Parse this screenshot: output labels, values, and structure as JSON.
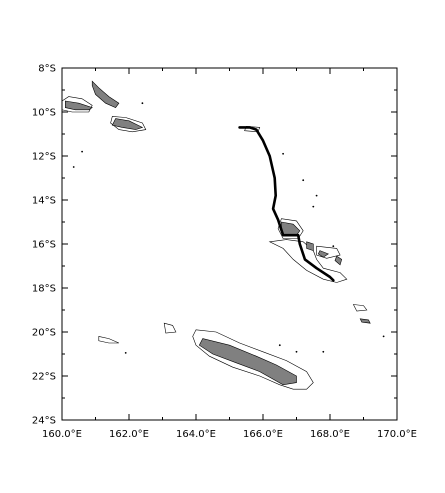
{
  "map": {
    "x_axis": {
      "min": 160.0,
      "max": 170.0,
      "labels": [
        "160.0°E",
        "162.0°E",
        "164.0°E",
        "166.0°E",
        "168.0°E",
        "170.0°E"
      ]
    },
    "y_axis": {
      "min": -24,
      "max": -8,
      "labels": [
        "8°S",
        "10°S",
        "12°S",
        "14°S",
        "16°S",
        "18°S",
        "20°S",
        "22°S",
        "24°S"
      ]
    },
    "colors": {
      "land_fill": "#808080",
      "outline": "#000000",
      "track": "#000000",
      "background": "#ffffff"
    },
    "track": {
      "description_none": "",
      "points": [
        [
          165.3,
          -10.7
        ],
        [
          165.6,
          -10.7
        ],
        [
          165.8,
          -10.8
        ],
        [
          166.0,
          -11.3
        ],
        [
          166.2,
          -12.0
        ],
        [
          166.35,
          -13.0
        ],
        [
          166.38,
          -13.8
        ],
        [
          166.3,
          -14.4
        ],
        [
          166.45,
          -14.9
        ],
        [
          166.6,
          -15.6
        ],
        [
          167.05,
          -15.6
        ],
        [
          167.1,
          -16.0
        ],
        [
          167.25,
          -16.7
        ],
        [
          167.6,
          -17.1
        ],
        [
          168.0,
          -17.5
        ],
        [
          168.1,
          -17.65
        ]
      ]
    }
  },
  "chart_data": {
    "type": "map",
    "title": "",
    "xlabel": "",
    "ylabel": "",
    "xlim": [
      160.0,
      170.0
    ],
    "ylim": [
      -24,
      -8
    ],
    "x_ticks": [
      "160.0°E",
      "162.0°E",
      "164.0°E",
      "166.0°E",
      "168.0°E",
      "170.0°E"
    ],
    "y_ticks": [
      "8°S",
      "10°S",
      "12°S",
      "14°S",
      "16°S",
      "18°S",
      "20°S",
      "22°S",
      "24°S"
    ],
    "series": [
      {
        "kind": "track",
        "points": [
          [
            165.3,
            -10.7
          ],
          [
            165.6,
            -10.7
          ],
          [
            165.8,
            -10.8
          ],
          [
            166.0,
            -11.3
          ],
          [
            166.2,
            -12.0
          ],
          [
            166.35,
            -13.0
          ],
          [
            166.38,
            -13.8
          ],
          [
            166.3,
            -14.4
          ],
          [
            166.45,
            -14.9
          ],
          [
            166.6,
            -15.6
          ],
          [
            167.05,
            -15.6
          ],
          [
            167.1,
            -16.0
          ],
          [
            167.25,
            -16.7
          ],
          [
            167.6,
            -17.1
          ],
          [
            168.0,
            -17.5
          ],
          [
            168.1,
            -17.65
          ]
        ]
      }
    ],
    "land": {
      "filled": [
        [
          [
            160.9,
            -8.6
          ],
          [
            161.1,
            -8.9
          ],
          [
            161.4,
            -9.3
          ],
          [
            161.7,
            -9.6
          ],
          [
            161.6,
            -9.8
          ],
          [
            161.3,
            -9.6
          ],
          [
            161.0,
            -9.2
          ],
          [
            160.9,
            -8.8
          ]
        ],
        [
          [
            160.1,
            -9.5
          ],
          [
            160.5,
            -9.6
          ],
          [
            160.9,
            -9.8
          ],
          [
            160.8,
            -9.9
          ],
          [
            160.4,
            -9.9
          ],
          [
            160.1,
            -9.8
          ]
        ],
        [
          [
            161.6,
            -10.3
          ],
          [
            162.0,
            -10.4
          ],
          [
            162.4,
            -10.7
          ],
          [
            162.2,
            -10.8
          ],
          [
            161.8,
            -10.7
          ],
          [
            161.5,
            -10.6
          ]
        ],
        [
          [
            166.55,
            -15.0
          ],
          [
            166.9,
            -15.1
          ],
          [
            167.1,
            -15.4
          ],
          [
            167.0,
            -15.6
          ],
          [
            166.6,
            -15.6
          ],
          [
            166.55,
            -15.3
          ]
        ],
        [
          [
            167.3,
            -15.9
          ],
          [
            167.5,
            -16.0
          ],
          [
            167.5,
            -16.3
          ],
          [
            167.3,
            -16.2
          ]
        ],
        [
          [
            167.7,
            -16.3
          ],
          [
            167.95,
            -16.45
          ],
          [
            167.8,
            -16.6
          ],
          [
            167.65,
            -16.45
          ]
        ],
        [
          [
            168.2,
            -16.55
          ],
          [
            168.35,
            -16.7
          ],
          [
            168.3,
            -16.95
          ],
          [
            168.15,
            -16.75
          ]
        ],
        [
          [
            168.9,
            -19.4
          ],
          [
            169.15,
            -19.45
          ],
          [
            169.2,
            -19.6
          ],
          [
            168.95,
            -19.55
          ]
        ],
        [
          [
            164.2,
            -20.3
          ],
          [
            165.0,
            -20.6
          ],
          [
            165.8,
            -21.1
          ],
          [
            166.4,
            -21.5
          ],
          [
            167.0,
            -22.0
          ],
          [
            167.0,
            -22.3
          ],
          [
            166.6,
            -22.4
          ],
          [
            165.9,
            -21.8
          ],
          [
            165.2,
            -21.4
          ],
          [
            164.5,
            -21.0
          ],
          [
            164.1,
            -20.6
          ]
        ]
      ],
      "outlines": [
        [
          [
            160.0,
            -9.5
          ],
          [
            160.2,
            -9.3
          ],
          [
            160.6,
            -9.4
          ],
          [
            160.9,
            -9.7
          ],
          [
            160.8,
            -10.0
          ],
          [
            160.3,
            -10.0
          ],
          [
            160.0,
            -9.9
          ]
        ],
        [
          [
            161.5,
            -10.2
          ],
          [
            161.9,
            -10.25
          ],
          [
            162.4,
            -10.5
          ],
          [
            162.5,
            -10.8
          ],
          [
            162.1,
            -10.9
          ],
          [
            161.7,
            -10.8
          ],
          [
            161.45,
            -10.5
          ]
        ],
        [
          [
            163.05,
            -19.6
          ],
          [
            163.3,
            -19.7
          ],
          [
            163.4,
            -20.0
          ],
          [
            163.1,
            -20.05
          ]
        ],
        [
          [
            164.0,
            -19.9
          ],
          [
            164.6,
            -20.0
          ],
          [
            165.3,
            -20.5
          ],
          [
            166.0,
            -20.9
          ],
          [
            166.7,
            -21.3
          ],
          [
            167.3,
            -21.8
          ],
          [
            167.5,
            -22.3
          ],
          [
            167.3,
            -22.6
          ],
          [
            166.9,
            -22.6
          ],
          [
            166.5,
            -22.4
          ],
          [
            165.9,
            -22.0
          ],
          [
            165.1,
            -21.6
          ],
          [
            164.4,
            -21.1
          ],
          [
            164.0,
            -20.6
          ],
          [
            163.9,
            -20.2
          ]
        ],
        [
          [
            161.1,
            -20.2
          ],
          [
            161.4,
            -20.3
          ],
          [
            161.7,
            -20.5
          ],
          [
            161.4,
            -20.5
          ],
          [
            161.1,
            -20.4
          ]
        ],
        [
          [
            166.2,
            -15.9
          ],
          [
            166.7,
            -15.8
          ],
          [
            167.2,
            -15.9
          ],
          [
            167.5,
            -16.3
          ],
          [
            167.6,
            -16.7
          ],
          [
            167.8,
            -17.1
          ],
          [
            168.3,
            -17.3
          ],
          [
            168.5,
            -17.6
          ],
          [
            168.2,
            -17.75
          ],
          [
            167.8,
            -17.6
          ],
          [
            167.3,
            -17.2
          ],
          [
            166.9,
            -16.7
          ],
          [
            166.6,
            -16.2
          ]
        ],
        [
          [
            166.55,
            -14.85
          ],
          [
            167.0,
            -14.95
          ],
          [
            167.2,
            -15.4
          ],
          [
            167.05,
            -15.75
          ],
          [
            166.6,
            -15.75
          ],
          [
            166.45,
            -15.3
          ]
        ],
        [
          [
            167.6,
            -16.1
          ],
          [
            168.2,
            -16.2
          ],
          [
            168.3,
            -16.5
          ],
          [
            167.9,
            -16.65
          ],
          [
            167.6,
            -16.5
          ]
        ],
        [
          [
            168.7,
            -18.75
          ],
          [
            169.0,
            -18.8
          ],
          [
            169.1,
            -19.0
          ],
          [
            168.8,
            -19.05
          ]
        ],
        [
          [
            165.5,
            -10.65
          ],
          [
            165.9,
            -10.7
          ],
          [
            165.85,
            -10.9
          ],
          [
            165.45,
            -10.85
          ]
        ]
      ],
      "dots": [
        [
          162.4,
          -9.6
        ],
        [
          160.6,
          -11.8
        ],
        [
          160.35,
          -12.5
        ],
        [
          166.6,
          -11.9
        ],
        [
          167.2,
          -13.1
        ],
        [
          167.6,
          -13.8
        ],
        [
          167.5,
          -14.3
        ],
        [
          169.6,
          -20.2
        ],
        [
          167.0,
          -20.9
        ],
        [
          167.8,
          -20.9
        ],
        [
          166.5,
          -20.6
        ],
        [
          161.9,
          -20.95
        ],
        [
          168.1,
          -16.1
        ]
      ]
    },
    "grid": false
  }
}
